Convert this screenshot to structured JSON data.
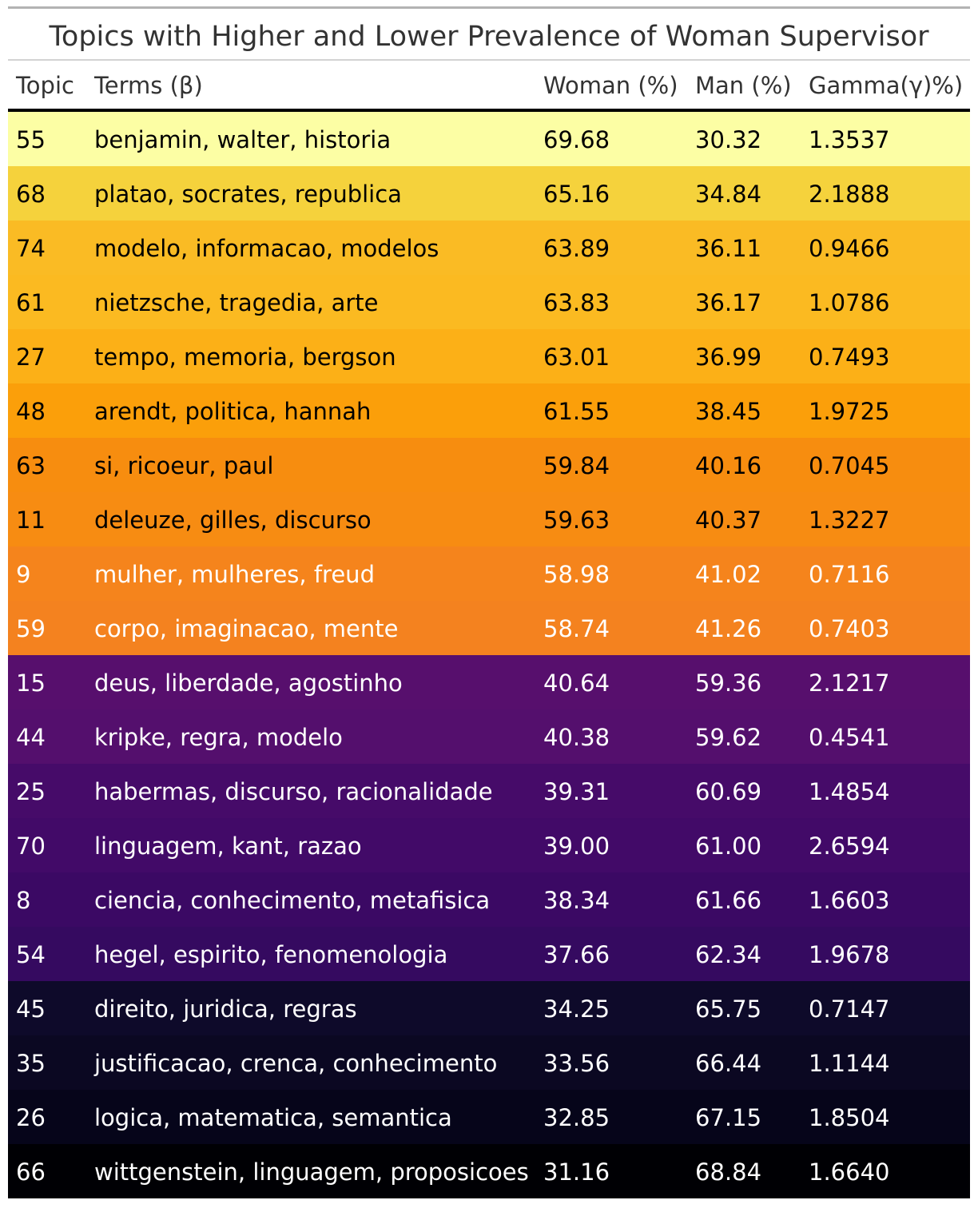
{
  "chart_data": {
    "type": "table",
    "title": "Topics with Higher and Lower Prevalence of Woman Supervisor",
    "columns": [
      "Topic",
      "Terms (β)",
      "Woman (%)",
      "Man (%)",
      "Gamma(γ)%)"
    ],
    "rows": [
      {
        "topic": "55",
        "terms": "benjamin, walter, historia",
        "woman": "69.68",
        "man": "30.32",
        "gamma": "1.3537",
        "bg": "#fcfea4",
        "fg": "#000000"
      },
      {
        "topic": "68",
        "terms": "platao, socrates, republica",
        "woman": "65.16",
        "man": "34.84",
        "gamma": "2.1888",
        "bg": "#f5d23c",
        "fg": "#000000"
      },
      {
        "topic": "74",
        "terms": "modelo, informacao, modelos",
        "woman": "63.89",
        "man": "36.11",
        "gamma": "0.9466",
        "bg": "#fabb24",
        "fg": "#000000"
      },
      {
        "topic": "61",
        "terms": "nietzsche, tragedia, arte",
        "woman": "63.83",
        "man": "36.17",
        "gamma": "1.0786",
        "bg": "#fbba21",
        "fg": "#000000"
      },
      {
        "topic": "27",
        "terms": "tempo, memoria, bergson",
        "woman": "63.01",
        "man": "36.99",
        "gamma": "0.7493",
        "bg": "#fcb017",
        "fg": "#000000"
      },
      {
        "topic": "48",
        "terms": "arendt, politica, hannah",
        "woman": "61.55",
        "man": "38.45",
        "gamma": "1.9725",
        "bg": "#fb9f0a",
        "fg": "#000000"
      },
      {
        "topic": "63",
        "terms": "si, ricoeur, paul",
        "woman": "59.84",
        "man": "40.16",
        "gamma": "0.7045",
        "bg": "#f78d0f",
        "fg": "#000000"
      },
      {
        "topic": "11",
        "terms": "deleuze, gilles, discurso",
        "woman": "59.63",
        "man": "40.37",
        "gamma": "1.3227",
        "bg": "#f78c12",
        "fg": "#000000"
      },
      {
        "topic": "9",
        "terms": "mulher, mulheres, freud",
        "woman": "58.98",
        "man": "41.02",
        "gamma": "0.7116",
        "bg": "#f5841c",
        "fg": "#ffffff"
      },
      {
        "topic": "59",
        "terms": "corpo, imaginacao, mente",
        "woman": "58.74",
        "man": "41.26",
        "gamma": "0.7403",
        "bg": "#f4821f",
        "fg": "#ffffff"
      },
      {
        "topic": "15",
        "terms": "deus, liberdade, agostinho",
        "woman": "40.64",
        "man": "59.36",
        "gamma": "2.1217",
        "bg": "#570f6d",
        "fg": "#ffffff"
      },
      {
        "topic": "44",
        "terms": "kripke, regra, modelo",
        "woman": "40.38",
        "man": "59.62",
        "gamma": "0.4541",
        "bg": "#540f6d",
        "fg": "#ffffff"
      },
      {
        "topic": "25",
        "terms": "habermas, discurso, racionalidade",
        "woman": "39.31",
        "man": "60.69",
        "gamma": "1.4854",
        "bg": "#460b69",
        "fg": "#ffffff"
      },
      {
        "topic": "70",
        "terms": "linguagem, kant, razao",
        "woman": "39.00",
        "man": "61.00",
        "gamma": "2.6594",
        "bg": "#420a68",
        "fg": "#ffffff"
      },
      {
        "topic": "8",
        "terms": "ciencia, conhecimento, metafisica",
        "woman": "38.34",
        "man": "61.66",
        "gamma": "1.6603",
        "bg": "#3b0964",
        "fg": "#ffffff"
      },
      {
        "topic": "54",
        "terms": "hegel, espirito, fenomenologia",
        "woman": "37.66",
        "man": "62.34",
        "gamma": "1.9678",
        "bg": "#350a60",
        "fg": "#ffffff"
      },
      {
        "topic": "45",
        "terms": "direito, juridica, regras",
        "woman": "34.25",
        "man": "65.75",
        "gamma": "0.7147",
        "bg": "#0e0a2a",
        "fg": "#ffffff"
      },
      {
        "topic": "35",
        "terms": "justificacao, crenca, conhecimento",
        "woman": "33.56",
        "man": "66.44",
        "gamma": "1.1144",
        "bg": "#0b0822",
        "fg": "#ffffff"
      },
      {
        "topic": "26",
        "terms": "logica, matematica, semantica",
        "woman": "32.85",
        "man": "67.15",
        "gamma": "1.8504",
        "bg": "#06051a",
        "fg": "#ffffff"
      },
      {
        "topic": "66",
        "terms": "wittgenstein, linguagem, proposicoes",
        "woman": "31.16",
        "man": "68.84",
        "gamma": "1.6640",
        "bg": "#000004",
        "fg": "#ffffff"
      }
    ]
  }
}
